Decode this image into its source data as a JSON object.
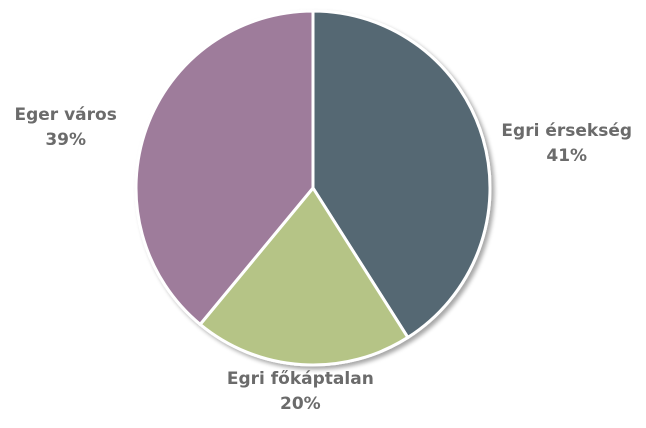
{
  "chart_data": {
    "type": "pie",
    "categories": [
      "Egri érsekség",
      "Egri főkáptalan",
      "Eger város"
    ],
    "values": [
      41,
      20,
      39
    ],
    "value_labels": [
      "41%",
      "20%",
      "39%"
    ],
    "colors": [
      "#546773",
      "#b5c486",
      "#9e7b9b"
    ]
  }
}
